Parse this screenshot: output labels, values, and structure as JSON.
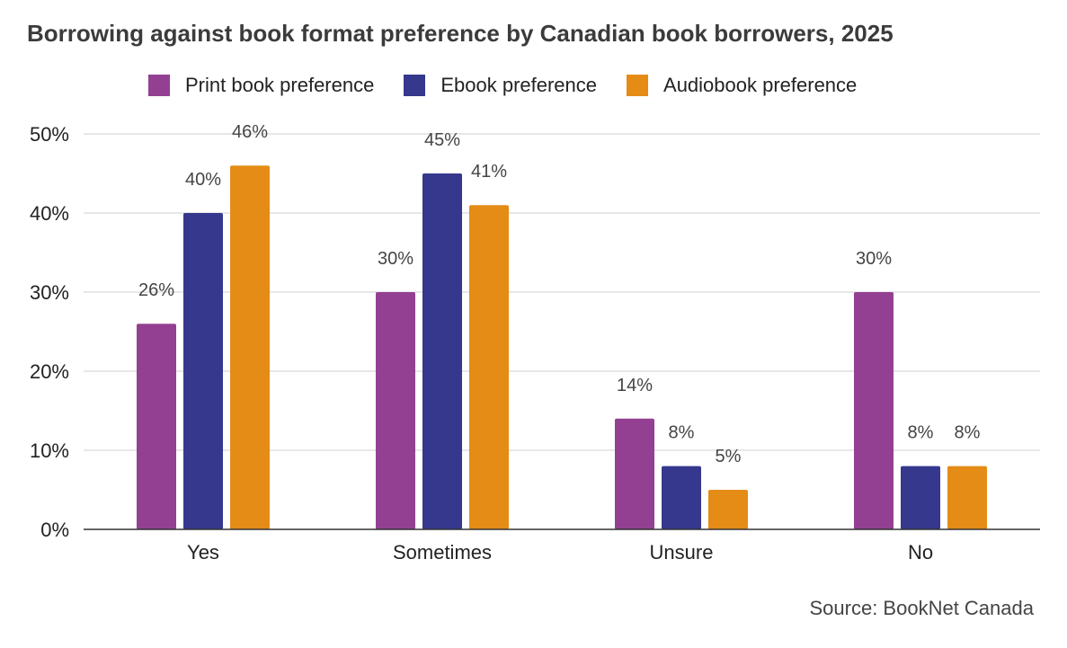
{
  "title": "Borrowing against book format preference by Canadian book borrowers, 2025",
  "source": "Source: BookNet Canada",
  "chart_data": {
    "type": "bar",
    "title": "Borrowing against book format preference by Canadian book borrowers, 2025",
    "categories": [
      "Yes",
      "Sometimes",
      "Unsure",
      "No"
    ],
    "series": [
      {
        "name": "Print book preference",
        "color": "#934092",
        "values": [
          26,
          30,
          14,
          30
        ],
        "labels": [
          "26%",
          "30%",
          "14%",
          "30%"
        ]
      },
      {
        "name": "Ebook preference",
        "color": "#35388c",
        "values": [
          40,
          45,
          8,
          8
        ],
        "labels": [
          "40%",
          "45%",
          "8%",
          "8%"
        ]
      },
      {
        "name": "Audiobook preference",
        "color": "#e48c16",
        "values": [
          46,
          41,
          5,
          8
        ],
        "labels": [
          "46%",
          "41%",
          "5%",
          "8%"
        ]
      }
    ],
    "ylim": [
      0,
      50
    ],
    "yticks": [
      0,
      10,
      20,
      30,
      40,
      50
    ],
    "ytick_labels": [
      "0%",
      "10%",
      "20%",
      "30%",
      "40%",
      "50%"
    ],
    "xlabel": "",
    "ylabel": "",
    "grid": true,
    "legend_position": "top"
  }
}
